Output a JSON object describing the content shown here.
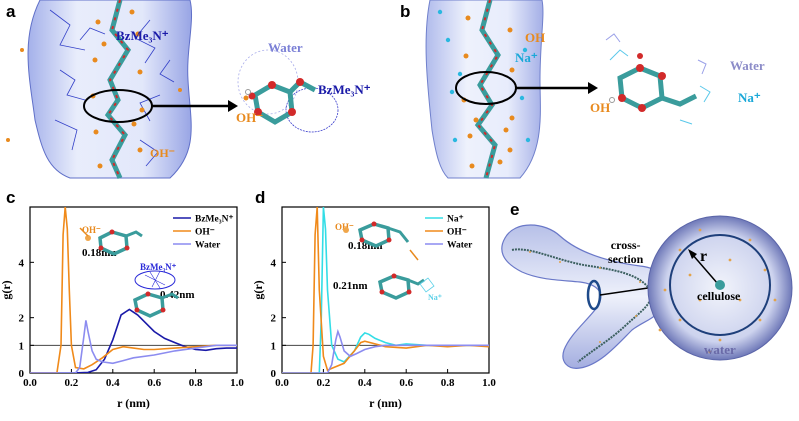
{
  "panels": {
    "a": {
      "label": "a",
      "texts": {
        "cation": "BzMe₃N⁺",
        "water": "Water",
        "oh_left": "OH⁻",
        "oh_bottom": "OH⁻",
        "cation_right": "BzMe₃N⁺"
      }
    },
    "b": {
      "label": "b",
      "texts": {
        "oh_top": "OH",
        "na_left": "Na⁺",
        "water": "Water",
        "oh_right": "OH",
        "na_right": "Na⁺"
      }
    },
    "c": {
      "label": "c",
      "annotations": {
        "d1": "0.18nm",
        "d2": "0.42nm",
        "oh_ion": "OH⁻",
        "cation_ion": "BzMe₃N⁺"
      }
    },
    "d": {
      "label": "d",
      "annotations": {
        "d1": "0.18nm",
        "d2": "0.21nm",
        "oh_ion": "OH⁻",
        "na_ion": "Na⁺"
      }
    },
    "e": {
      "label": "e",
      "texts": {
        "cross_section": "cross-\nsection",
        "r": "r",
        "cellulose": "cellulose",
        "water": "water"
      }
    }
  },
  "colors": {
    "cation": "#1a1aa8",
    "hydroxide": "#f08a1a",
    "water": "#8c8cf0",
    "sodium": "#33dde6",
    "refline": "#444444"
  },
  "chart_data": [
    {
      "type": "line",
      "panel": "c",
      "title": "",
      "xlabel": "r (nm)",
      "ylabel": "g(r)",
      "xlim": [
        0.0,
        1.0
      ],
      "ylim": [
        0,
        6
      ],
      "xticks": [
        "0.0",
        "0.2",
        "0.4",
        "0.6",
        "0.8",
        "1.0"
      ],
      "yticks": [
        "0",
        "1",
        "2",
        "4"
      ],
      "reference_line": 1,
      "legend_position": "top-right",
      "series": [
        {
          "name": "BzMe₃N⁺",
          "color": "#1a1aa8",
          "x": [
            0.0,
            0.2,
            0.28,
            0.32,
            0.36,
            0.4,
            0.44,
            0.48,
            0.52,
            0.56,
            0.6,
            0.65,
            0.7,
            0.75,
            0.8,
            0.85,
            0.9,
            0.95,
            1.0
          ],
          "y": [
            0,
            0,
            0.02,
            0.12,
            0.5,
            1.2,
            2.1,
            2.3,
            2.1,
            1.8,
            1.5,
            1.25,
            1.1,
            0.95,
            0.85,
            0.82,
            0.88,
            0.9,
            0.9
          ]
        },
        {
          "name": "OH⁻",
          "color": "#f08a1a",
          "x": [
            0.0,
            0.13,
            0.15,
            0.16,
            0.17,
            0.18,
            0.19,
            0.2,
            0.22,
            0.26,
            0.3,
            0.35,
            0.4,
            0.45,
            0.5,
            0.55,
            0.6,
            0.7,
            0.8,
            0.9,
            1.0
          ],
          "y": [
            0,
            0,
            1.0,
            5.0,
            6.0,
            5.2,
            3.0,
            1.0,
            0.2,
            0.15,
            0.3,
            0.55,
            0.85,
            0.95,
            0.9,
            0.85,
            0.85,
            0.9,
            0.95,
            1.0,
            1.0
          ]
        },
        {
          "name": "Water",
          "color": "#8c8cf0",
          "x": [
            0.0,
            0.22,
            0.24,
            0.26,
            0.27,
            0.28,
            0.3,
            0.32,
            0.35,
            0.4,
            0.45,
            0.5,
            0.6,
            0.7,
            0.8,
            0.9,
            1.0
          ],
          "y": [
            0,
            0,
            0.2,
            1.3,
            1.9,
            1.5,
            0.8,
            0.5,
            0.4,
            0.35,
            0.45,
            0.55,
            0.65,
            0.8,
            0.9,
            1.0,
            1.0
          ]
        }
      ]
    },
    {
      "type": "line",
      "panel": "d",
      "title": "",
      "xlabel": "r (nm)",
      "ylabel": "g(r)",
      "xlim": [
        0.0,
        1.0
      ],
      "ylim": [
        0,
        6
      ],
      "xticks": [
        "0.0",
        "0.2",
        "0.4",
        "0.6",
        "0.8",
        "1.0"
      ],
      "yticks": [
        "0",
        "1",
        "2",
        "4"
      ],
      "reference_line": 1,
      "legend_position": "top-right",
      "series": [
        {
          "name": "Na⁺",
          "color": "#33dde6",
          "x": [
            0.0,
            0.18,
            0.19,
            0.2,
            0.21,
            0.22,
            0.24,
            0.27,
            0.3,
            0.35,
            0.38,
            0.4,
            0.42,
            0.45,
            0.5,
            0.55,
            0.6,
            0.7,
            0.8,
            0.9,
            1.0
          ],
          "y": [
            0,
            0,
            2.0,
            6.0,
            5.2,
            3.0,
            1.0,
            0.5,
            0.4,
            0.8,
            1.3,
            1.45,
            1.4,
            1.25,
            1.1,
            1.0,
            1.05,
            1.0,
            1.0,
            1.0,
            1.0
          ]
        },
        {
          "name": "OH⁻",
          "color": "#f08a1a",
          "x": [
            0.0,
            0.14,
            0.15,
            0.16,
            0.17,
            0.18,
            0.2,
            0.22,
            0.25,
            0.3,
            0.35,
            0.38,
            0.4,
            0.45,
            0.5,
            0.6,
            0.7,
            0.8,
            0.9,
            1.0
          ],
          "y": [
            0,
            0,
            1.0,
            5.0,
            6.0,
            3.0,
            0.6,
            0.1,
            0.2,
            0.35,
            0.8,
            1.1,
            1.15,
            1.05,
            0.95,
            0.9,
            1.0,
            0.95,
            1.0,
            0.95
          ]
        },
        {
          "name": "Water",
          "color": "#8c8cf0",
          "x": [
            0.0,
            0.22,
            0.24,
            0.26,
            0.27,
            0.28,
            0.3,
            0.33,
            0.36,
            0.4,
            0.45,
            0.5,
            0.6,
            0.7,
            0.8,
            0.9,
            1.0
          ],
          "y": [
            0,
            0,
            0.3,
            1.2,
            1.5,
            1.3,
            0.8,
            0.6,
            0.7,
            0.85,
            0.95,
            1.0,
            1.0,
            1.0,
            1.0,
            1.0,
            1.0
          ]
        }
      ]
    }
  ]
}
